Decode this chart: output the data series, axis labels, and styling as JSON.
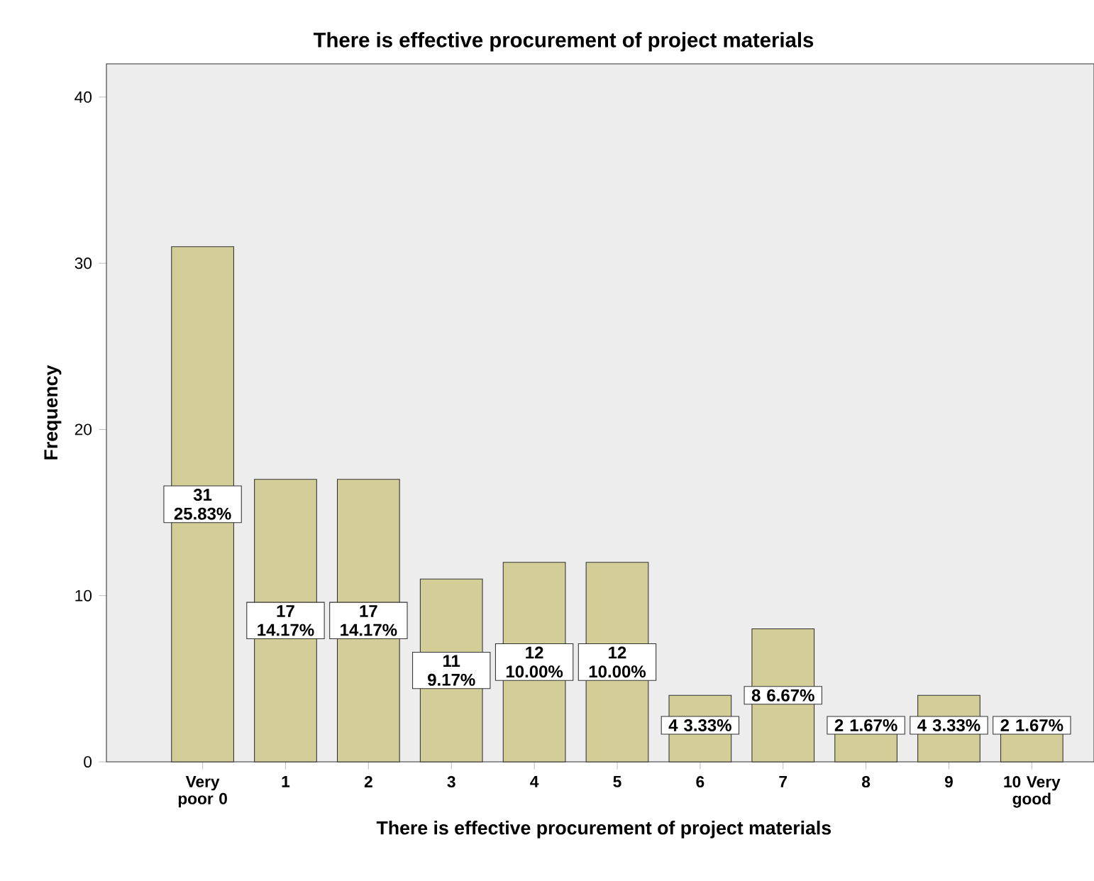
{
  "chart_data": {
    "type": "bar",
    "title": "There is effective procurement of project materials",
    "xlabel": "There is effective procurement of project materials",
    "ylabel": "Frequency",
    "categories": [
      "Very poor 0",
      "1",
      "2",
      "3",
      "4",
      "5",
      "6",
      "7",
      "8",
      "9",
      "10 Very good"
    ],
    "values": [
      31,
      17,
      17,
      11,
      12,
      12,
      4,
      8,
      2,
      4,
      2
    ],
    "value_labels": [
      "31 25.83%",
      "17 14.17%",
      "17 14.17%",
      "11 9.17%",
      "12 10.00%",
      "12 10.00%",
      "4 3.33%",
      "8 6.67%",
      "2 1.67%",
      "4 3.33%",
      "2 1.67%"
    ],
    "color": "#d3ce97",
    "ylim": [
      0,
      42
    ],
    "yticks": [
      0,
      10,
      20,
      30,
      40
    ]
  }
}
